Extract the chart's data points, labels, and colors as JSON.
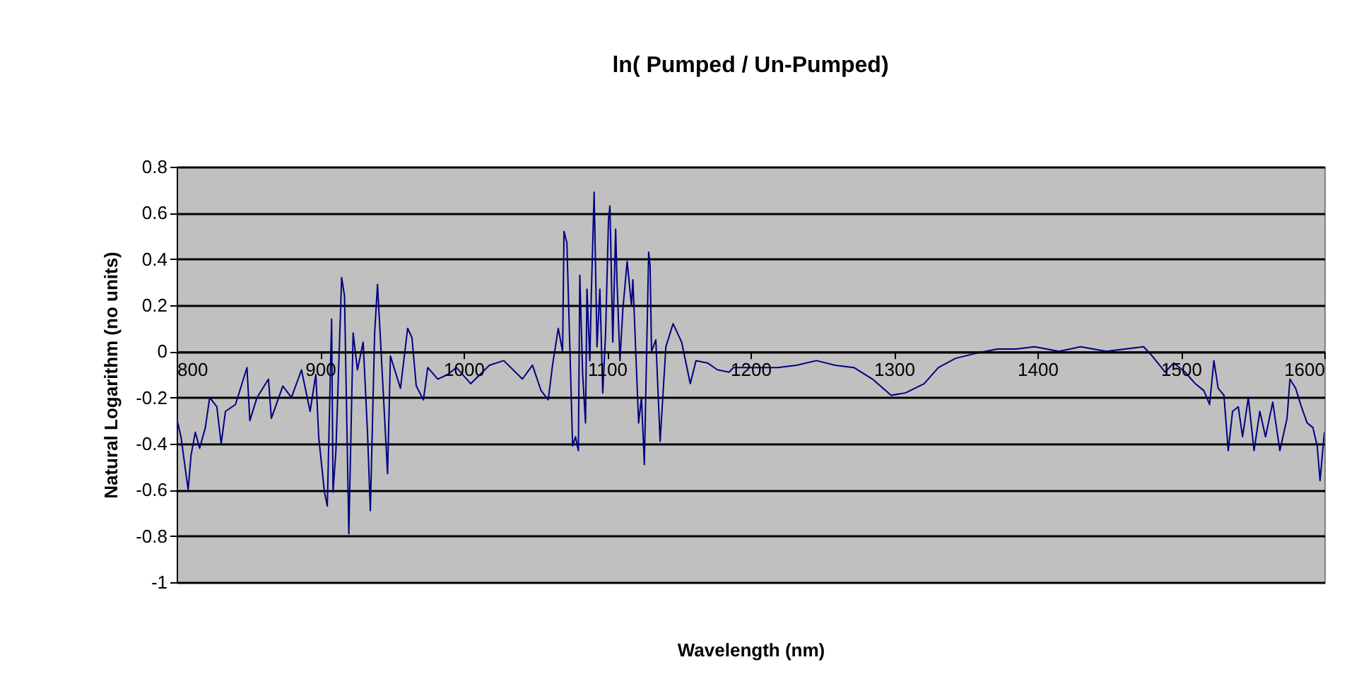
{
  "chart_data": {
    "type": "line",
    "title": "ln( Pumped / Un-Pumped)",
    "xlabel": "Wavelength (nm)",
    "ylabel": "Natural Logarithm (no units)",
    "xlim": [
      800,
      1600
    ],
    "xticks": [
      800,
      900,
      1000,
      1100,
      1200,
      1300,
      1400,
      1500,
      1600
    ],
    "ylim": [
      -1,
      0.8
    ],
    "yticks": [
      -1,
      -0.8,
      -0.6,
      -0.4,
      -0.2,
      0,
      0.2,
      0.4,
      0.6,
      0.8
    ],
    "grid": "y",
    "legend": false,
    "marker": "none",
    "line_style": "solid",
    "series": [
      {
        "color": "#000080",
        "x": [
          800,
          803,
          808,
          810,
          813,
          816,
          820,
          823,
          828,
          831,
          834,
          841,
          849,
          851,
          856,
          864,
          866,
          874,
          880,
          887,
          893,
          897,
          899,
          903,
          905,
          908,
          909,
          911,
          915,
          917,
          920,
          923,
          926,
          930,
          933,
          935,
          938,
          940,
          943,
          947,
          949,
          952,
          956,
          961,
          964,
          967,
          972,
          975,
          982,
          989,
          995,
          1005,
          1018,
          1028,
          1041,
          1048,
          1054,
          1059,
          1062,
          1066,
          1069,
          1070,
          1072,
          1076,
          1078,
          1080,
          1081,
          1083,
          1085,
          1086,
          1088,
          1089,
          1091,
          1093,
          1095,
          1097,
          1099,
          1101,
          1102,
          1104,
          1106,
          1107,
          1109,
          1111,
          1114,
          1117,
          1118,
          1122,
          1124,
          1126,
          1129,
          1130,
          1131,
          1134,
          1137,
          1141,
          1146,
          1149,
          1152,
          1156,
          1158,
          1162,
          1170,
          1177,
          1185,
          1188,
          1219,
          1232,
          1246,
          1259,
          1272,
          1285,
          1298,
          1308,
          1321,
          1331,
          1343,
          1356,
          1372,
          1385,
          1398,
          1415,
          1430,
          1448,
          1474,
          1480,
          1489,
          1495,
          1503,
          1510,
          1516,
          1520,
          1523,
          1526,
          1530,
          1533,
          1536,
          1540,
          1543,
          1547,
          1551,
          1555,
          1559,
          1564,
          1569,
          1574,
          1576,
          1580,
          1584,
          1588,
          1592,
          1595,
          1597,
          1600
        ],
        "values": [
          -0.29,
          -0.37,
          -0.6,
          -0.45,
          -0.35,
          -0.42,
          -0.33,
          -0.2,
          -0.24,
          -0.4,
          -0.26,
          -0.23,
          -0.07,
          -0.3,
          -0.2,
          -0.12,
          -0.29,
          -0.15,
          -0.2,
          -0.08,
          -0.26,
          -0.1,
          -0.37,
          -0.61,
          -0.67,
          0.14,
          -0.61,
          -0.43,
          0.32,
          0.24,
          -0.79,
          0.08,
          -0.08,
          0.04,
          -0.35,
          -0.69,
          0.08,
          0.29,
          -0.06,
          -0.53,
          -0.02,
          -0.08,
          -0.16,
          0.1,
          0.06,
          -0.15,
          -0.21,
          -0.07,
          -0.12,
          -0.1,
          -0.07,
          -0.14,
          -0.06,
          -0.04,
          -0.12,
          -0.06,
          -0.17,
          -0.21,
          -0.06,
          0.1,
          0,
          0.52,
          0.47,
          -0.41,
          -0.37,
          -0.43,
          0.33,
          -0.1,
          -0.31,
          0.27,
          -0.04,
          0.24,
          0.69,
          0.02,
          0.27,
          -0.18,
          0.08,
          0.57,
          0.63,
          0.04,
          0.53,
          0.29,
          -0.04,
          0.18,
          0.39,
          0.2,
          0.31,
          -0.31,
          -0.2,
          -0.49,
          0.43,
          0.37,
          0,
          0.05,
          -0.39,
          0.02,
          0.12,
          0.08,
          0.04,
          -0.08,
          -0.14,
          -0.04,
          -0.05,
          -0.08,
          -0.09,
          -0.07,
          -0.07,
          -0.06,
          -0.04,
          -0.06,
          -0.07,
          -0.12,
          -0.19,
          -0.18,
          -0.14,
          -0.07,
          -0.03,
          -0.01,
          0.01,
          0.01,
          0.02,
          0,
          0.02,
          0,
          0.02,
          -0.02,
          -0.09,
          -0.05,
          -0.09,
          -0.14,
          -0.17,
          -0.23,
          -0.04,
          -0.16,
          -0.19,
          -0.43,
          -0.26,
          -0.24,
          -0.37,
          -0.2,
          -0.43,
          -0.26,
          -0.37,
          -0.22,
          -0.43,
          -0.29,
          -0.12,
          -0.16,
          -0.24,
          -0.31,
          -0.33,
          -0.41,
          -0.56,
          -0.35
        ]
      }
    ]
  }
}
